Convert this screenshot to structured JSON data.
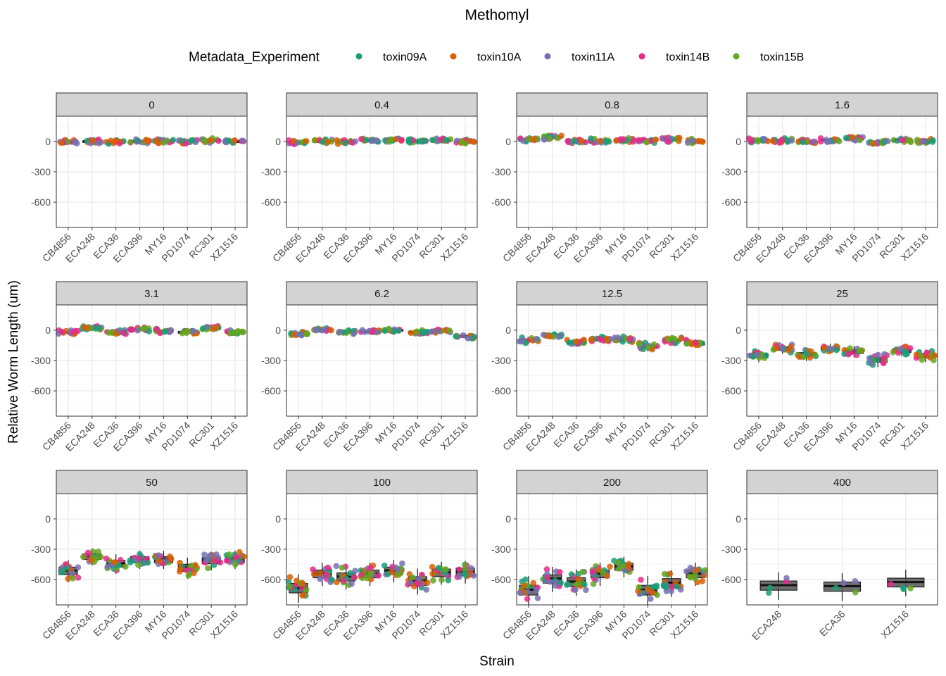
{
  "chart_data": {
    "type": "boxplot-jitter-faceted",
    "title": "Methomyl",
    "xlabel": "Strain",
    "ylabel": "Relative Worm Length (um)",
    "ylim": [
      -850,
      250
    ],
    "yticks": [
      0,
      -300,
      -600
    ],
    "legend": {
      "title": "Metadata_Experiment",
      "position": "top",
      "entries": [
        "toxin09A",
        "toxin10A",
        "toxin11A",
        "toxin14B",
        "toxin15B"
      ],
      "colors": [
        "#1b9e77",
        "#d95f02",
        "#7570b3",
        "#e7298a",
        "#66a61e"
      ]
    },
    "strains": [
      "CB4856",
      "ECA248",
      "ECA36",
      "ECA396",
      "MY16",
      "PD1074",
      "RC301",
      "XZ1516"
    ],
    "facets": [
      {
        "label": "0",
        "median": [
          -5,
          0,
          -5,
          0,
          5,
          0,
          10,
          0
        ]
      },
      {
        "label": "0.4",
        "median": [
          -10,
          0,
          -5,
          15,
          20,
          5,
          10,
          0
        ]
      },
      {
        "label": "0.8",
        "median": [
          20,
          40,
          0,
          10,
          15,
          5,
          20,
          5
        ]
      },
      {
        "label": "1.6",
        "median": [
          10,
          10,
          0,
          15,
          25,
          -10,
          15,
          5
        ]
      },
      {
        "label": "3.1",
        "median": [
          -20,
          20,
          -20,
          10,
          -10,
          -20,
          20,
          -20
        ]
      },
      {
        "label": "6.2",
        "median": [
          -40,
          5,
          -20,
          -15,
          0,
          -20,
          -10,
          -60
        ]
      },
      {
        "label": "12.5",
        "median": [
          -100,
          -50,
          -120,
          -90,
          -90,
          -160,
          -100,
          -130
        ]
      },
      {
        "label": "25",
        "median": [
          -250,
          -180,
          -240,
          -180,
          -210,
          -290,
          -200,
          -250
        ]
      },
      {
        "label": "50",
        "median": [
          -510,
          -370,
          -440,
          -400,
          -400,
          -480,
          -410,
          -400
        ]
      },
      {
        "label": "100",
        "median": [
          -680,
          -540,
          -570,
          -540,
          -510,
          -610,
          -530,
          -520
        ]
      },
      {
        "label": "200",
        "median": [
          -700,
          -590,
          -620,
          -540,
          -470,
          -700,
          -630,
          -540
        ]
      },
      {
        "label": "400",
        "strains": [
          "ECA248",
          "ECA36",
          "XZ1516"
        ],
        "median": [
          -655,
          -665,
          -625
        ]
      }
    ]
  }
}
